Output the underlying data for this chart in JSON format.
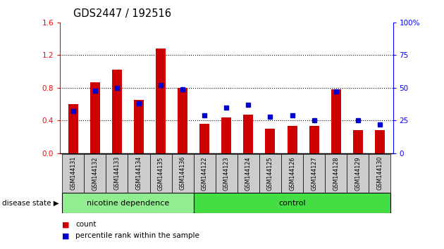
{
  "title": "GDS2447 / 192516",
  "samples": [
    "GSM144131",
    "GSM144132",
    "GSM144133",
    "GSM144134",
    "GSM144135",
    "GSM144136",
    "GSM144122",
    "GSM144123",
    "GSM144124",
    "GSM144125",
    "GSM144126",
    "GSM144127",
    "GSM144128",
    "GSM144129",
    "GSM144130"
  ],
  "counts": [
    0.6,
    0.87,
    1.02,
    0.65,
    1.28,
    0.8,
    0.36,
    0.44,
    0.47,
    0.3,
    0.33,
    0.33,
    0.78,
    0.28,
    0.28
  ],
  "percentiles": [
    32,
    48,
    50,
    38,
    52,
    49,
    29,
    35,
    37,
    28,
    29,
    25,
    47,
    25,
    22
  ],
  "bar_color": "#cc0000",
  "dot_color": "#0000cc",
  "ylim_left": [
    0,
    1.6
  ],
  "ylim_right": [
    0,
    100
  ],
  "yticks_left": [
    0,
    0.4,
    0.8,
    1.2,
    1.6
  ],
  "yticks_right": [
    0,
    25,
    50,
    75,
    100
  ],
  "ytick_labels_right": [
    "0",
    "25",
    "50",
    "75",
    "100%"
  ],
  "group1_label": "nicotine dependence",
  "group2_label": "control",
  "group1_count": 6,
  "group2_count": 9,
  "group_label_prefix": "disease state",
  "legend_count_label": "count",
  "legend_percentile_label": "percentile rank within the sample",
  "group1_color": "#90ee90",
  "group2_color": "#44dd44",
  "background_color": "#ffffff",
  "bar_width": 0.45,
  "label_box_color": "#cccccc",
  "plot_bg": "#ffffff"
}
